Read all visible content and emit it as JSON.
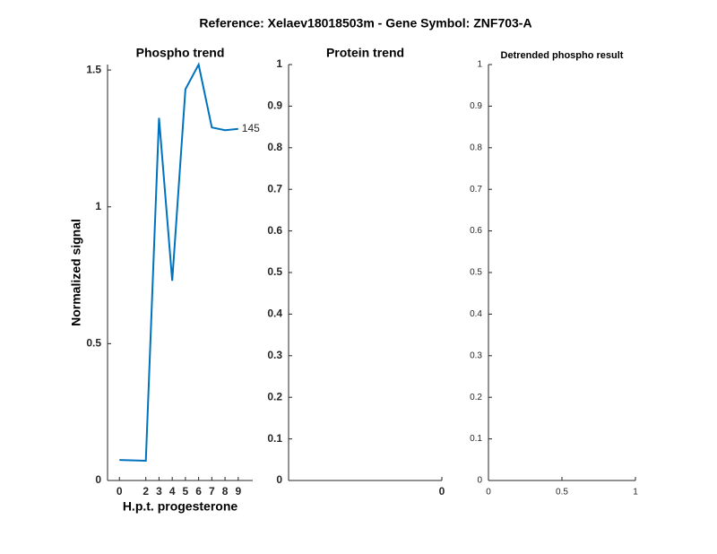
{
  "title": "Reference:  Xelaev18018503m - Gene Symbol:  ZNF703-A",
  "chart_data": [
    {
      "type": "line",
      "title": "Phospho trend",
      "xlabel": "H.p.t. progesterone",
      "ylabel": "Normalized signal",
      "x": [
        0,
        2,
        3,
        4,
        5,
        6,
        7,
        8,
        9
      ],
      "values": [
        0.075,
        0.072,
        1.325,
        0.73,
        1.43,
        1.52,
        1.29,
        1.28,
        1.285
      ],
      "color": "#0072bd",
      "annotation": "145",
      "xlim": [
        -0.9,
        10.1
      ],
      "xticks": [
        0,
        2,
        3,
        4,
        5,
        6,
        7,
        8,
        9
      ],
      "ylim": [
        0,
        1.52
      ],
      "yticks": [
        0,
        0.5,
        1,
        1.5
      ],
      "grid": false
    },
    {
      "type": "line",
      "title": "Protein trend",
      "x": [],
      "values": [],
      "color": "#0072bd",
      "xlim": [
        -1,
        0
      ],
      "xticks": [
        0
      ],
      "ylim": [
        0,
        1
      ],
      "yticks": [
        0,
        0.1,
        0.2,
        0.3,
        0.4,
        0.5,
        0.6,
        0.7,
        0.8,
        0.9,
        1
      ],
      "grid": false
    },
    {
      "type": "line",
      "title": "Detrended phospho result",
      "x": [],
      "values": [],
      "color": "#0072bd",
      "xlim": [
        0,
        1
      ],
      "xticks": [
        0,
        0.5,
        1
      ],
      "ylim": [
        0,
        1
      ],
      "yticks": [
        0,
        0.1,
        0.2,
        0.3,
        0.4,
        0.5,
        0.6,
        0.7,
        0.8,
        0.9,
        1
      ],
      "grid": false
    }
  ]
}
